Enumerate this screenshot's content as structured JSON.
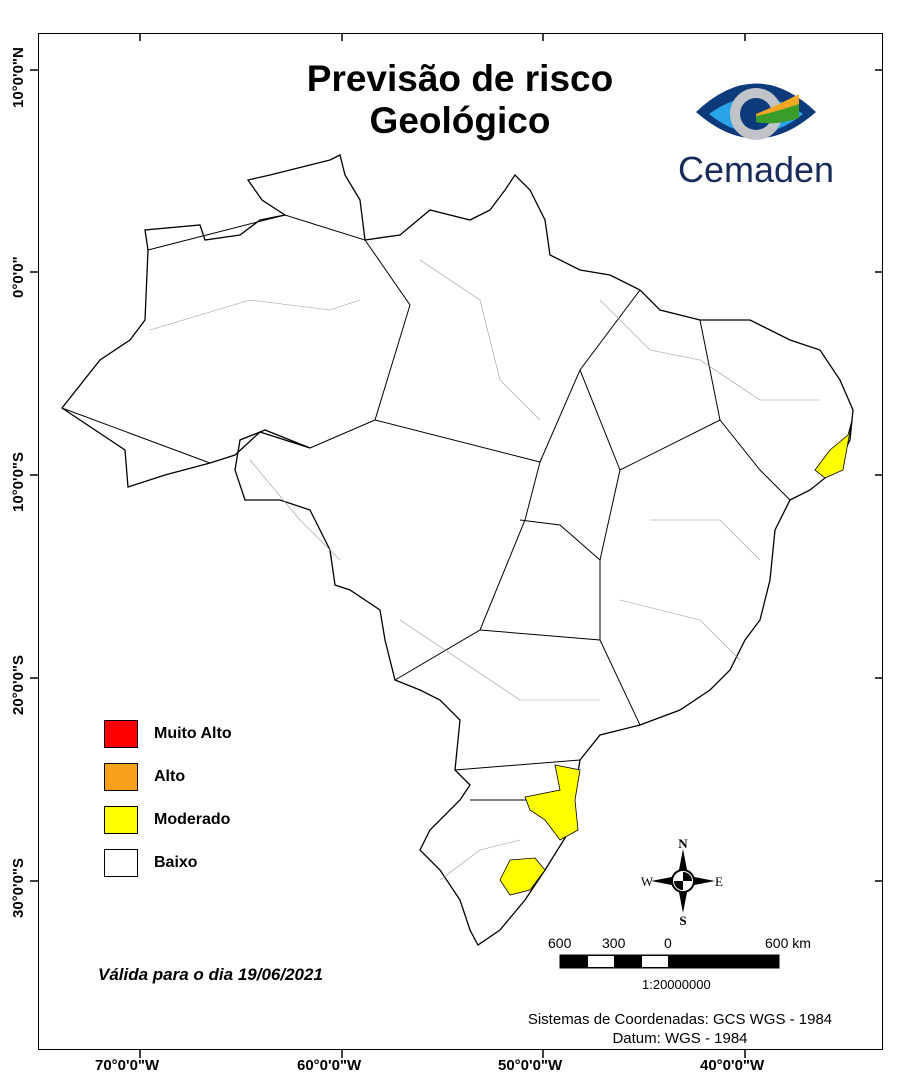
{
  "title_line1": "Previsão de risco",
  "title_line2": "Geológico",
  "logo": {
    "text": "Cemaden",
    "colors": [
      "#0d3a7a",
      "#2aa4e8",
      "#f5a623",
      "#3a9d2a",
      "#c0c4c8"
    ]
  },
  "legend": [
    {
      "label": "Muito Alto",
      "color": "#ff0000"
    },
    {
      "label": "Alto",
      "color": "#f7a01c"
    },
    {
      "label": "Moderado",
      "color": "#ffff00"
    },
    {
      "label": "Baixo",
      "color": "#ffffff"
    }
  ],
  "validity": "Válida para o dia 19/06/2021",
  "lon_ticks": [
    "70°0'0\"W",
    "60°0'0\"W",
    "50°0'0\"W",
    "40°0'0\"W"
  ],
  "lat_ticks": [
    "10°0'0\"N",
    "0°0'0\"",
    "10°0'0\"S",
    "20°0'0\"S",
    "30°0'0\"S"
  ],
  "compass": {
    "n": "N",
    "s": "S",
    "e": "E",
    "w": "W"
  },
  "scale": {
    "labels": [
      "600",
      "300",
      "0",
      "600 km"
    ],
    "ratio": "1:20000000"
  },
  "coord_system": "Sistemas de Coordenadas: GCS WGS - 1984",
  "datum": "Datum: WGS - 1984",
  "risk_regions": [
    {
      "region": "Nordeste litoral",
      "level": "Moderado"
    },
    {
      "region": "Santa Catarina litoral",
      "level": "Moderado"
    },
    {
      "region": "Rio Grande do Sul leste",
      "level": "Moderado"
    }
  ]
}
